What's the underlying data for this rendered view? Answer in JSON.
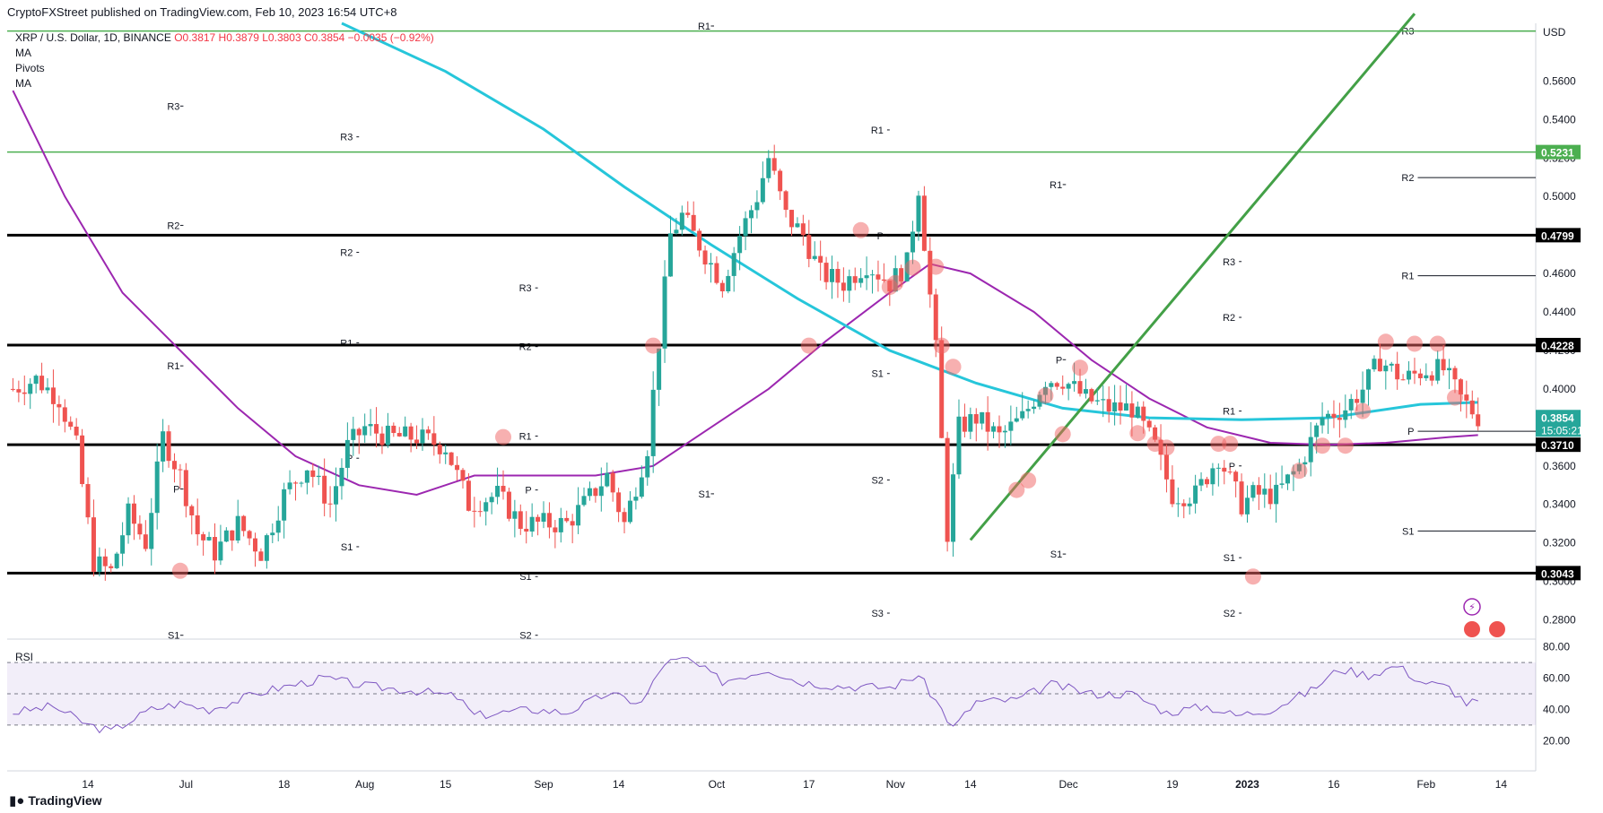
{
  "header": {
    "published": "CryptoFXStreet published on TradingView.com, Feb 10, 2023 16:54 UTC+8"
  },
  "legend": {
    "symbol": "XRP / U.S. Dollar, 1D, BINANCE",
    "ohlc": "O0.3817 H0.3879 L0.3803 C0.3854 −0.0035 (−0.92%)",
    "ind1": "MA",
    "ind2": "Pivots",
    "ind3": "MA"
  },
  "footer": {
    "brand": "TradingView",
    "logo_icon": "tradingview-logo-icon"
  },
  "chart_data": {
    "type": "candlestick",
    "currency": "USD",
    "y_range": [
      0.27,
      0.59
    ],
    "x_range": [
      "2022-05-31",
      "2023-02-20"
    ],
    "price_ticks": [
      0.28,
      0.3,
      0.32,
      0.34,
      0.36,
      0.38,
      0.4,
      0.42,
      0.44,
      0.46,
      0.48,
      0.5,
      0.52,
      0.54,
      0.56
    ],
    "price_tick_labels": [
      "0.2800",
      "0.3000",
      "0.3200",
      "0.3400",
      "0.3600",
      "0.3800",
      "0.4000",
      "0.4200",
      "0.4400",
      "0.4600",
      "0.4800",
      "0.5000",
      "0.5200",
      "0.5400",
      "0.5600"
    ],
    "date_ticks": [
      {
        "label": "14",
        "date": "2022-06-14"
      },
      {
        "label": "Jul",
        "date": "2022-07-01"
      },
      {
        "label": "18",
        "date": "2022-07-18"
      },
      {
        "label": "Aug",
        "date": "2022-08-01"
      },
      {
        "label": "15",
        "date": "2022-08-15"
      },
      {
        "label": "Sep",
        "date": "2022-09-01"
      },
      {
        "label": "14",
        "date": "2022-09-14"
      },
      {
        "label": "Oct",
        "date": "2022-10-01"
      },
      {
        "label": "17",
        "date": "2022-10-17"
      },
      {
        "label": "Nov",
        "date": "2022-11-01"
      },
      {
        "label": "14",
        "date": "2022-11-14"
      },
      {
        "label": "Dec",
        "date": "2022-12-01"
      },
      {
        "label": "19",
        "date": "2022-12-19"
      },
      {
        "label": "2023",
        "date": "2023-01-01"
      },
      {
        "label": "16",
        "date": "2023-01-16"
      },
      {
        "label": "Feb",
        "date": "2023-02-01"
      },
      {
        "label": "14",
        "date": "2023-02-14"
      }
    ],
    "ohlc_keypoints": [
      [
        "2022-06-01",
        0.4
      ],
      [
        "2022-06-05",
        0.405
      ],
      [
        "2022-06-09",
        0.395
      ],
      [
        "2022-06-12",
        0.37
      ],
      [
        "2022-06-15",
        0.31
      ],
      [
        "2022-06-18",
        0.305
      ],
      [
        "2022-06-21",
        0.335
      ],
      [
        "2022-06-24",
        0.32
      ],
      [
        "2022-06-27",
        0.375
      ],
      [
        "2022-06-30",
        0.355
      ],
      [
        "2022-07-03",
        0.325
      ],
      [
        "2022-07-06",
        0.315
      ],
      [
        "2022-07-10",
        0.33
      ],
      [
        "2022-07-14",
        0.315
      ],
      [
        "2022-07-18",
        0.345
      ],
      [
        "2022-07-22",
        0.36
      ],
      [
        "2022-07-26",
        0.34
      ],
      [
        "2022-07-29",
        0.37
      ],
      [
        "2022-08-01",
        0.38
      ],
      [
        "2022-08-05",
        0.375
      ],
      [
        "2022-08-10",
        0.375
      ],
      [
        "2022-08-15",
        0.37
      ],
      [
        "2022-08-19",
        0.34
      ],
      [
        "2022-08-24",
        0.345
      ],
      [
        "2022-08-28",
        0.33
      ],
      [
        "2022-09-01",
        0.33
      ],
      [
        "2022-09-05",
        0.33
      ],
      [
        "2022-09-08",
        0.34
      ],
      [
        "2022-09-12",
        0.355
      ],
      [
        "2022-09-15",
        0.33
      ],
      [
        "2022-09-19",
        0.37
      ],
      [
        "2022-09-23",
        0.48
      ],
      [
        "2022-09-25",
        0.49
      ],
      [
        "2022-09-29",
        0.47
      ],
      [
        "2022-10-02",
        0.455
      ],
      [
        "2022-10-05",
        0.48
      ],
      [
        "2022-10-08",
        0.5
      ],
      [
        "2022-10-10",
        0.52
      ],
      [
        "2022-10-13",
        0.49
      ],
      [
        "2022-10-16",
        0.48
      ],
      [
        "2022-10-19",
        0.46
      ],
      [
        "2022-10-23",
        0.455
      ],
      [
        "2022-10-27",
        0.465
      ],
      [
        "2022-10-31",
        0.455
      ],
      [
        "2022-11-03",
        0.465
      ],
      [
        "2022-11-05",
        0.505
      ],
      [
        "2022-11-08",
        0.42
      ],
      [
        "2022-11-10",
        0.325
      ],
      [
        "2022-11-12",
        0.38
      ],
      [
        "2022-11-15",
        0.385
      ],
      [
        "2022-11-19",
        0.375
      ],
      [
        "2022-11-23",
        0.385
      ],
      [
        "2022-11-27",
        0.405
      ],
      [
        "2022-11-30",
        0.405
      ],
      [
        "2022-12-04",
        0.395
      ],
      [
        "2022-12-08",
        0.39
      ],
      [
        "2022-12-12",
        0.39
      ],
      [
        "2022-12-16",
        0.37
      ],
      [
        "2022-12-19",
        0.345
      ],
      [
        "2022-12-23",
        0.345
      ],
      [
        "2022-12-27",
        0.365
      ],
      [
        "2022-12-31",
        0.34
      ],
      [
        "2023-01-02",
        0.345
      ],
      [
        "2023-01-06",
        0.345
      ],
      [
        "2023-01-10",
        0.36
      ],
      [
        "2023-01-14",
        0.385
      ],
      [
        "2023-01-18",
        0.39
      ],
      [
        "2023-01-21",
        0.4
      ],
      [
        "2023-01-24",
        0.415
      ],
      [
        "2023-01-28",
        0.405
      ],
      [
        "2023-02-01",
        0.41
      ],
      [
        "2023-02-04",
        0.41
      ],
      [
        "2023-02-07",
        0.395
      ],
      [
        "2023-02-10",
        0.3854
      ]
    ],
    "price_labels": [
      {
        "value": "0.5231",
        "price": 0.5231,
        "style": "green"
      },
      {
        "value": "0.4799",
        "price": 0.4799,
        "style": "dark"
      },
      {
        "value": "0.4228",
        "price": 0.4228,
        "style": "dark"
      },
      {
        "value": "0.3854",
        "price": 0.3854,
        "style": "teal",
        "sublabel": "15:05:21"
      },
      {
        "value": "0.3710",
        "price": 0.371,
        "style": "dark"
      },
      {
        "value": "0.3043",
        "price": 0.3043,
        "style": "dark"
      }
    ],
    "horizontal_levels": [
      {
        "price": 0.4799,
        "kind": "support-resistance"
      },
      {
        "price": 0.4228,
        "kind": "support-resistance"
      },
      {
        "price": 0.371,
        "kind": "support-resistance"
      },
      {
        "price": 0.3043,
        "kind": "support-resistance"
      },
      {
        "price": 0.5231,
        "kind": "green-level"
      },
      {
        "price": 0.586,
        "kind": "green-level"
      }
    ],
    "pivot_blocks": [
      {
        "start": "2022-06-01",
        "end": "2022-06-30",
        "levels": [
          {
            "label": "R3",
            "price": 0.547
          },
          {
            "label": "R2",
            "price": 0.485
          },
          {
            "label": "R1",
            "price": 0.412
          },
          {
            "label": "P",
            "price": 0.348
          },
          {
            "label": "S1",
            "price": 0.272
          }
        ]
      },
      {
        "start": "2022-07-01",
        "end": "2022-07-31",
        "levels": [
          {
            "label": "R3",
            "price": 0.531
          },
          {
            "label": "R2",
            "price": 0.471
          },
          {
            "label": "R1",
            "price": 0.424
          },
          {
            "label": "P",
            "price": 0.364
          },
          {
            "label": "S1",
            "price": 0.318
          }
        ]
      },
      {
        "start": "2022-08-01",
        "end": "2022-08-31",
        "levels": [
          {
            "label": "R3",
            "price": 0.4525
          },
          {
            "label": "R2",
            "price": 0.422
          },
          {
            "label": "R1",
            "price": 0.3755
          },
          {
            "label": "P",
            "price": 0.3475
          },
          {
            "label": "S1",
            "price": 0.3025
          },
          {
            "label": "S2",
            "price": 0.272
          }
        ]
      },
      {
        "start": "2022-09-01",
        "end": "2022-09-30",
        "levels": [
          {
            "label": "R1",
            "price": 0.5886
          },
          {
            "label": "S1",
            "price": 0.3455
          }
        ]
      },
      {
        "start": "2022-10-01",
        "end": "2022-10-31",
        "levels": [
          {
            "label": "R1",
            "price": 0.5346
          },
          {
            "label": "P",
            "price": 0.4795
          },
          {
            "label": "S1",
            "price": 0.408
          },
          {
            "label": "S2",
            "price": 0.3527
          },
          {
            "label": "S3",
            "price": 0.2835
          }
        ]
      },
      {
        "start": "2022-11-01",
        "end": "2022-11-30",
        "levels": [
          {
            "label": "R1",
            "price": 0.5062
          },
          {
            "label": "P",
            "price": 0.4152
          },
          {
            "label": "S1",
            "price": 0.3142
          }
        ]
      },
      {
        "start": "2022-12-01",
        "end": "2022-12-31",
        "levels": [
          {
            "label": "R3",
            "price": 0.4662
          },
          {
            "label": "R2",
            "price": 0.4372
          },
          {
            "label": "R1",
            "price": 0.3885
          },
          {
            "label": "P",
            "price": 0.36
          },
          {
            "label": "S1",
            "price": 0.3123
          },
          {
            "label": "S2",
            "price": 0.2835
          }
        ]
      },
      {
        "start": "2023-01-01",
        "end": "2023-02-20",
        "levels": [
          {
            "label": "R3",
            "price": 0.586
          },
          {
            "label": "R2",
            "price": 0.5098
          },
          {
            "label": "R1",
            "price": 0.4588
          },
          {
            "label": "P",
            "price": 0.378
          },
          {
            "label": "S1",
            "price": 0.3262
          }
        ]
      }
    ],
    "ma_fast_keypoints": [
      [
        "2022-06-01",
        0.555
      ],
      [
        "2022-06-10",
        0.5
      ],
      [
        "2022-06-20",
        0.45
      ],
      [
        "2022-06-30",
        0.42
      ],
      [
        "2022-07-10",
        0.39
      ],
      [
        "2022-07-20",
        0.365
      ],
      [
        "2022-07-31",
        0.35
      ],
      [
        "2022-08-10",
        0.345
      ],
      [
        "2022-08-20",
        0.355
      ],
      [
        "2022-08-31",
        0.355
      ],
      [
        "2022-09-10",
        0.355
      ],
      [
        "2022-09-20",
        0.36
      ],
      [
        "2022-09-30",
        0.38
      ],
      [
        "2022-10-10",
        0.4
      ],
      [
        "2022-10-20",
        0.425
      ],
      [
        "2022-10-31",
        0.45
      ],
      [
        "2022-11-07",
        0.465
      ],
      [
        "2022-11-14",
        0.46
      ],
      [
        "2022-11-25",
        0.44
      ],
      [
        "2022-12-05",
        0.415
      ],
      [
        "2022-12-15",
        0.395
      ],
      [
        "2022-12-25",
        0.38
      ],
      [
        "2023-01-05",
        0.372
      ],
      [
        "2023-01-15",
        0.371
      ],
      [
        "2023-01-25",
        0.372
      ],
      [
        "2023-02-05",
        0.375
      ],
      [
        "2023-02-10",
        0.376
      ]
    ],
    "ma_slow_keypoints": [
      [
        "2022-07-28",
        0.59
      ],
      [
        "2022-08-15",
        0.565
      ],
      [
        "2022-09-01",
        0.535
      ],
      [
        "2022-09-15",
        0.505
      ],
      [
        "2022-09-30",
        0.475
      ],
      [
        "2022-10-15",
        0.447
      ],
      [
        "2022-10-31",
        0.42
      ],
      [
        "2022-11-15",
        0.403
      ],
      [
        "2022-11-30",
        0.39
      ],
      [
        "2022-12-15",
        0.385
      ],
      [
        "2022-12-31",
        0.384
      ],
      [
        "2023-01-15",
        0.385
      ],
      [
        "2023-01-31",
        0.392
      ],
      [
        "2023-02-10",
        0.393
      ]
    ],
    "trendline": {
      "start": [
        "2022-11-14",
        0.3215
      ],
      "end": [
        "2023-01-30",
        0.595
      ]
    },
    "rsi": {
      "levels": [
        20,
        40,
        60,
        80
      ],
      "level_labels": [
        "20.00",
        "40.00",
        "60.00",
        "80.00"
      ],
      "overbought": 70,
      "oversold": 30,
      "mid": 50,
      "keypoints": [
        [
          "2022-06-01",
          38
        ],
        [
          "2022-06-08",
          42
        ],
        [
          "2022-06-14",
          30
        ],
        [
          "2022-06-18",
          26
        ],
        [
          "2022-06-25",
          40
        ],
        [
          "2022-06-30",
          44
        ],
        [
          "2022-07-05",
          40
        ],
        [
          "2022-07-15",
          52
        ],
        [
          "2022-07-25",
          60
        ],
        [
          "2022-08-01",
          55
        ],
        [
          "2022-08-10",
          52
        ],
        [
          "2022-08-17",
          48
        ],
        [
          "2022-08-20",
          36
        ],
        [
          "2022-08-30",
          40
        ],
        [
          "2022-09-05",
          38
        ],
        [
          "2022-09-12",
          50
        ],
        [
          "2022-09-18",
          44
        ],
        [
          "2022-09-22",
          70
        ],
        [
          "2022-09-26",
          72
        ],
        [
          "2022-10-02",
          58
        ],
        [
          "2022-10-10",
          66
        ],
        [
          "2022-10-15",
          58
        ],
        [
          "2022-10-22",
          55
        ],
        [
          "2022-10-31",
          54
        ],
        [
          "2022-11-05",
          62
        ],
        [
          "2022-11-09",
          40
        ],
        [
          "2022-11-11",
          28
        ],
        [
          "2022-11-15",
          45
        ],
        [
          "2022-11-22",
          46
        ],
        [
          "2022-11-28",
          56
        ],
        [
          "2022-12-05",
          50
        ],
        [
          "2022-12-12",
          50
        ],
        [
          "2022-12-18",
          38
        ],
        [
          "2022-12-25",
          42
        ],
        [
          "2022-12-30",
          36
        ],
        [
          "2023-01-05",
          40
        ],
        [
          "2023-01-12",
          52
        ],
        [
          "2023-01-17",
          66
        ],
        [
          "2023-01-22",
          62
        ],
        [
          "2023-01-27",
          68
        ],
        [
          "2023-01-31",
          58
        ],
        [
          "2023-02-05",
          54
        ],
        [
          "2023-02-08",
          44
        ],
        [
          "2023-02-10",
          45
        ]
      ],
      "title": "RSI"
    },
    "bounce_markers": [
      [
        "2022-06-30",
        0.3055
      ],
      [
        "2022-08-25",
        0.375
      ],
      [
        "2022-09-20",
        0.4225
      ],
      [
        "2022-10-17",
        0.4225
      ],
      [
        "2022-10-26",
        0.4825
      ],
      [
        "2022-10-31",
        0.453
      ],
      [
        "2022-11-01",
        0.455
      ],
      [
        "2022-11-04",
        0.463
      ],
      [
        "2022-11-08",
        0.4635
      ],
      [
        "2022-11-09",
        0.4225
      ],
      [
        "2022-11-11",
        0.4115
      ],
      [
        "2022-11-22",
        0.3475
      ],
      [
        "2022-11-24",
        0.3525
      ],
      [
        "2022-11-27",
        0.3965
      ],
      [
        "2022-11-30",
        0.3765
      ],
      [
        "2022-12-03",
        0.411
      ],
      [
        "2022-12-13",
        0.377
      ],
      [
        "2022-12-16",
        0.3715
      ],
      [
        "2022-12-18",
        0.3695
      ],
      [
        "2022-12-27",
        0.3715
      ],
      [
        "2022-12-29",
        0.3715
      ],
      [
        "2023-01-02",
        0.3025
      ],
      [
        "2023-01-10",
        0.3575
      ],
      [
        "2023-01-14",
        0.3705
      ],
      [
        "2023-01-18",
        0.3705
      ],
      [
        "2023-01-21",
        0.3885
      ],
      [
        "2023-01-25",
        0.4245
      ],
      [
        "2023-01-30",
        0.4235
      ],
      [
        "2023-02-03",
        0.4235
      ],
      [
        "2023-02-06",
        0.3955
      ]
    ]
  }
}
